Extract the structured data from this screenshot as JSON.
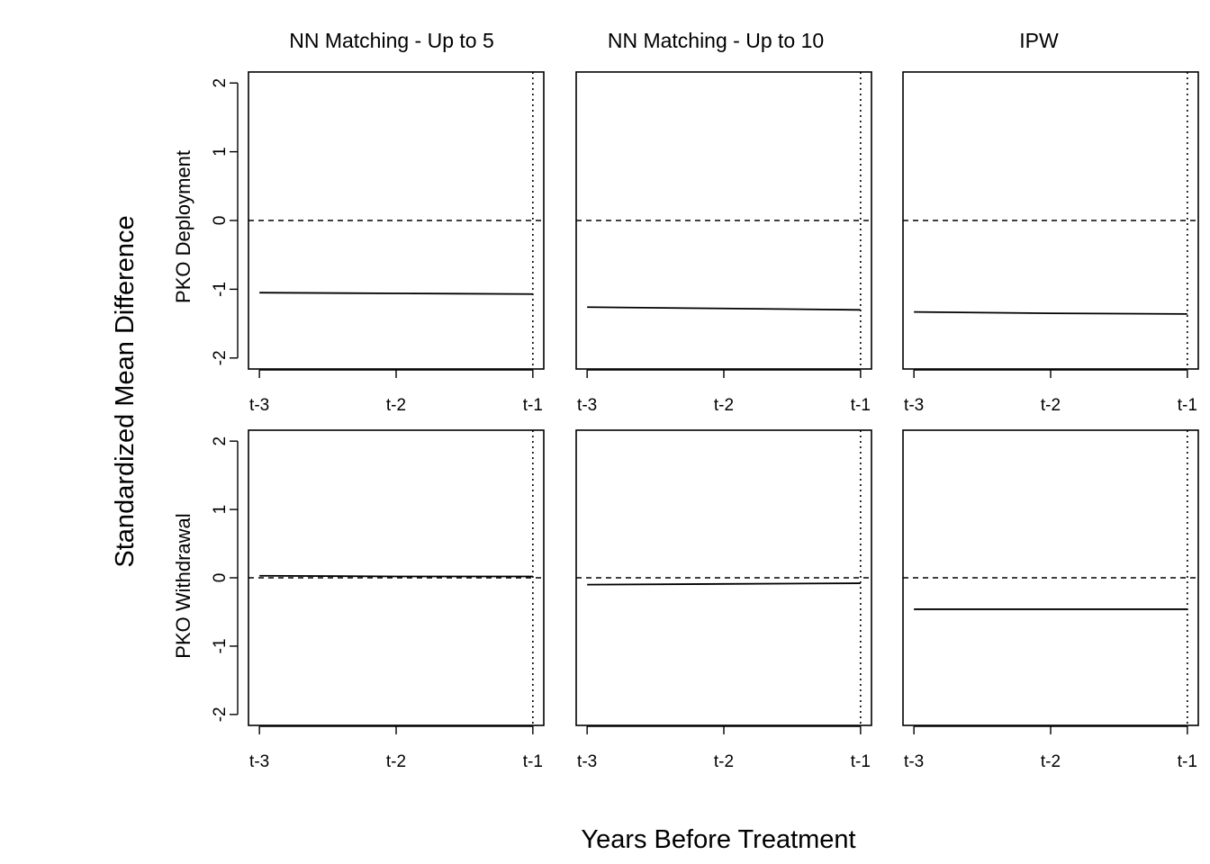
{
  "figure": {
    "ylabel": "Standardized Mean Difference",
    "xlabel": "Years Before Treatment",
    "column_titles": [
      "NN Matching - Up to 5",
      "NN Matching - Up to 10",
      "IPW"
    ],
    "row_titles": [
      "PKO Deployment",
      "PKO Withdrawal"
    ]
  },
  "chart_data": [
    {
      "type": "line",
      "row": "PKO Deployment",
      "column": "NN Matching - Up to 5",
      "categories": [
        "t-3",
        "t-2",
        "t-1"
      ],
      "values": [
        -1.05,
        -1.06,
        -1.07
      ],
      "ylim": [
        -2,
        2
      ],
      "yticks": [
        -2,
        -1,
        0,
        1,
        2
      ],
      "reference_line": 0,
      "vertical_marker": "t-1"
    },
    {
      "type": "line",
      "row": "PKO Deployment",
      "column": "NN Matching - Up to 10",
      "categories": [
        "t-3",
        "t-2",
        "t-1"
      ],
      "values": [
        -1.26,
        -1.28,
        -1.3
      ],
      "ylim": [
        -2,
        2
      ],
      "yticks": [
        -2,
        -1,
        0,
        1,
        2
      ],
      "reference_line": 0,
      "vertical_marker": "t-1"
    },
    {
      "type": "line",
      "row": "PKO Deployment",
      "column": "IPW",
      "categories": [
        "t-3",
        "t-2",
        "t-1"
      ],
      "values": [
        -1.33,
        -1.35,
        -1.36
      ],
      "ylim": [
        -2,
        2
      ],
      "yticks": [
        -2,
        -1,
        0,
        1,
        2
      ],
      "reference_line": 0,
      "vertical_marker": "t-1"
    },
    {
      "type": "line",
      "row": "PKO Withdrawal",
      "column": "NN Matching - Up to 5",
      "categories": [
        "t-3",
        "t-2",
        "t-1"
      ],
      "values": [
        0.03,
        0.02,
        0.02
      ],
      "ylim": [
        -2,
        2
      ],
      "yticks": [
        -2,
        -1,
        0,
        1,
        2
      ],
      "reference_line": 0,
      "vertical_marker": "t-1"
    },
    {
      "type": "line",
      "row": "PKO Withdrawal",
      "column": "NN Matching - Up to 10",
      "categories": [
        "t-3",
        "t-2",
        "t-1"
      ],
      "values": [
        -0.1,
        -0.09,
        -0.08
      ],
      "ylim": [
        -2,
        2
      ],
      "yticks": [
        -2,
        -1,
        0,
        1,
        2
      ],
      "reference_line": 0,
      "vertical_marker": "t-1"
    },
    {
      "type": "line",
      "row": "PKO Withdrawal",
      "column": "IPW",
      "categories": [
        "t-3",
        "t-2",
        "t-1"
      ],
      "values": [
        -0.46,
        -0.46,
        -0.46
      ],
      "ylim": [
        -2,
        2
      ],
      "yticks": [
        -2,
        -1,
        0,
        1,
        2
      ],
      "reference_line": 0,
      "vertical_marker": "t-1"
    }
  ]
}
